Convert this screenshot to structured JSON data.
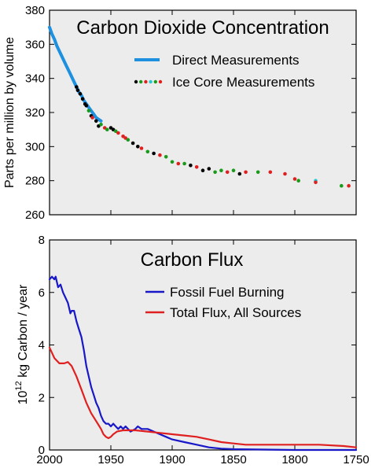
{
  "chart_data": [
    {
      "type": "scatter",
      "title": "Carbon Dioxide Concentration",
      "xlabel": "",
      "ylabel": "Parts per million by volume",
      "xlim": [
        2000,
        1750
      ],
      "ylim": [
        260,
        380
      ],
      "x_reversed": true,
      "xticks": [
        2000,
        1950,
        1900,
        1850,
        1800,
        1750
      ],
      "yticks": [
        260,
        280,
        300,
        320,
        340,
        360,
        380
      ],
      "xticklabels_shown": false,
      "grid": false,
      "legend_position": "top-right",
      "legend_ice_colors": [
        "#000000",
        "#1a9a1a",
        "#e02020",
        "#20c8d0"
      ],
      "series": [
        {
          "name": "Direct Measurements",
          "kind": "line",
          "color": "#1e90e0",
          "points": [
            [
              2000,
              370
            ],
            [
              1998,
              366
            ],
            [
              1996,
              363
            ],
            [
              1994,
              359
            ],
            [
              1992,
              356
            ],
            [
              1990,
              353
            ],
            [
              1988,
              350
            ],
            [
              1986,
              347
            ],
            [
              1984,
              344
            ],
            [
              1982,
              341
            ],
            [
              1980,
              338
            ],
            [
              1978,
              335
            ],
            [
              1976,
              332
            ],
            [
              1974,
              330
            ],
            [
              1972,
              327
            ],
            [
              1970,
              325
            ],
            [
              1968,
              323
            ],
            [
              1966,
              321
            ],
            [
              1964,
              319
            ],
            [
              1962,
              317
            ],
            [
              1960,
              316
            ],
            [
              1958,
              315
            ]
          ]
        },
        {
          "name": "Ice Core Measurements",
          "kind": "scatter",
          "points": [
            {
              "x": 1978,
              "y": 335,
              "c": "#000000"
            },
            {
              "x": 1977,
              "y": 333,
              "c": "#000000"
            },
            {
              "x": 1975,
              "y": 331,
              "c": "#000000"
            },
            {
              "x": 1973,
              "y": 328,
              "c": "#000000"
            },
            {
              "x": 1971,
              "y": 325,
              "c": "#000000"
            },
            {
              "x": 1970,
              "y": 324,
              "c": "#000000"
            },
            {
              "x": 1968,
              "y": 321,
              "c": "#1a9a1a"
            },
            {
              "x": 1966,
              "y": 318,
              "c": "#000000"
            },
            {
              "x": 1965,
              "y": 317,
              "c": "#e02020"
            },
            {
              "x": 1962,
              "y": 315,
              "c": "#000000"
            },
            {
              "x": 1960,
              "y": 312,
              "c": "#000000"
            },
            {
              "x": 1958,
              "y": 313,
              "c": "#1a9a1a"
            },
            {
              "x": 1955,
              "y": 311,
              "c": "#e02020"
            },
            {
              "x": 1953,
              "y": 310,
              "c": "#1a9a1a"
            },
            {
              "x": 1950,
              "y": 311,
              "c": "#000000"
            },
            {
              "x": 1948,
              "y": 310,
              "c": "#000000"
            },
            {
              "x": 1946,
              "y": 309,
              "c": "#1a9a1a"
            },
            {
              "x": 1944,
              "y": 308,
              "c": "#e02020"
            },
            {
              "x": 1940,
              "y": 306,
              "c": "#e02020"
            },
            {
              "x": 1938,
              "y": 305,
              "c": "#e02020"
            },
            {
              "x": 1936,
              "y": 304,
              "c": "#1a9a1a"
            },
            {
              "x": 1932,
              "y": 302,
              "c": "#000000"
            },
            {
              "x": 1928,
              "y": 300,
              "c": "#000000"
            },
            {
              "x": 1925,
              "y": 299,
              "c": "#e02020"
            },
            {
              "x": 1920,
              "y": 297,
              "c": "#1a9a1a"
            },
            {
              "x": 1915,
              "y": 296,
              "c": "#000000"
            },
            {
              "x": 1910,
              "y": 295,
              "c": "#e02020"
            },
            {
              "x": 1905,
              "y": 294,
              "c": "#1a9a1a"
            },
            {
              "x": 1900,
              "y": 291,
              "c": "#1a9a1a"
            },
            {
              "x": 1895,
              "y": 290,
              "c": "#e02020"
            },
            {
              "x": 1890,
              "y": 290,
              "c": "#1a9a1a"
            },
            {
              "x": 1885,
              "y": 289,
              "c": "#000000"
            },
            {
              "x": 1880,
              "y": 288,
              "c": "#e02020"
            },
            {
              "x": 1875,
              "y": 286,
              "c": "#000000"
            },
            {
              "x": 1870,
              "y": 287,
              "c": "#000000"
            },
            {
              "x": 1865,
              "y": 285,
              "c": "#1a9a1a"
            },
            {
              "x": 1860,
              "y": 286,
              "c": "#1a9a1a"
            },
            {
              "x": 1855,
              "y": 285,
              "c": "#e02020"
            },
            {
              "x": 1850,
              "y": 286,
              "c": "#1a9a1a"
            },
            {
              "x": 1845,
              "y": 284,
              "c": "#000000"
            },
            {
              "x": 1840,
              "y": 285,
              "c": "#e02020"
            },
            {
              "x": 1830,
              "y": 285,
              "c": "#1a9a1a"
            },
            {
              "x": 1820,
              "y": 285,
              "c": "#e02020"
            },
            {
              "x": 1808,
              "y": 284,
              "c": "#e02020"
            },
            {
              "x": 1800,
              "y": 281,
              "c": "#e02020"
            },
            {
              "x": 1797,
              "y": 280,
              "c": "#1a9a1a"
            },
            {
              "x": 1783,
              "y": 280,
              "c": "#20c8d0"
            },
            {
              "x": 1783,
              "y": 279,
              "c": "#e02020"
            },
            {
              "x": 1762,
              "y": 277,
              "c": "#1a9a1a"
            },
            {
              "x": 1756,
              "y": 277,
              "c": "#e02020"
            }
          ]
        }
      ]
    },
    {
      "type": "line",
      "title": "Carbon Flux",
      "xlabel": "",
      "ylabel": "10^12 kg Carbon / year",
      "ylabel_base": "10",
      "ylabel_exp": "12",
      "ylabel_rest": " kg Carbon / year",
      "xlim": [
        2000,
        1750
      ],
      "ylim": [
        0,
        8
      ],
      "x_reversed": true,
      "xticks": [
        2000,
        1950,
        1900,
        1850,
        1800,
        1750
      ],
      "yticks": [
        0,
        2,
        4,
        6,
        8
      ],
      "grid": false,
      "legend_position": "top-right",
      "series": [
        {
          "name": "Fossil Fuel Burning",
          "color": "#1818c8",
          "points": [
            [
              2000,
              6.5
            ],
            [
              1998,
              6.6
            ],
            [
              1996,
              6.5
            ],
            [
              1995,
              6.6
            ],
            [
              1993,
              6.2
            ],
            [
              1991,
              6.3
            ],
            [
              1989,
              6.0
            ],
            [
              1987,
              5.8
            ],
            [
              1985,
              5.6
            ],
            [
              1984,
              5.4
            ],
            [
              1983,
              5.2
            ],
            [
              1982,
              5.3
            ],
            [
              1980,
              5.3
            ],
            [
              1978,
              4.9
            ],
            [
              1976,
              4.6
            ],
            [
              1974,
              4.3
            ],
            [
              1972,
              3.8
            ],
            [
              1970,
              3.2
            ],
            [
              1968,
              2.8
            ],
            [
              1966,
              2.4
            ],
            [
              1964,
              2.1
            ],
            [
              1962,
              1.8
            ],
            [
              1960,
              1.6
            ],
            [
              1958,
              1.3
            ],
            [
              1956,
              1.1
            ],
            [
              1954,
              1.0
            ],
            [
              1952,
              1.0
            ],
            [
              1950,
              0.9
            ],
            [
              1948,
              1.0
            ],
            [
              1946,
              0.9
            ],
            [
              1944,
              0.8
            ],
            [
              1942,
              0.9
            ],
            [
              1940,
              0.8
            ],
            [
              1938,
              0.9
            ],
            [
              1936,
              0.8
            ],
            [
              1934,
              0.7
            ],
            [
              1930,
              0.8
            ],
            [
              1928,
              0.9
            ],
            [
              1925,
              0.8
            ],
            [
              1920,
              0.8
            ],
            [
              1915,
              0.7
            ],
            [
              1910,
              0.6
            ],
            [
              1905,
              0.5
            ],
            [
              1900,
              0.4
            ],
            [
              1890,
              0.3
            ],
            [
              1880,
              0.2
            ],
            [
              1870,
              0.1
            ],
            [
              1860,
              0.05
            ],
            [
              1850,
              0.03
            ],
            [
              1800,
              0.0
            ],
            [
              1750,
              0.0
            ]
          ]
        },
        {
          "name": "Total Flux, All Sources",
          "color": "#e02020",
          "points": [
            [
              2000,
              3.9
            ],
            [
              1996,
              3.5
            ],
            [
              1992,
              3.3
            ],
            [
              1988,
              3.3
            ],
            [
              1985,
              3.35
            ],
            [
              1982,
              3.2
            ],
            [
              1978,
              2.8
            ],
            [
              1974,
              2.3
            ],
            [
              1970,
              1.8
            ],
            [
              1966,
              1.4
            ],
            [
              1962,
              1.1
            ],
            [
              1958,
              0.8
            ],
            [
              1956,
              0.6
            ],
            [
              1954,
              0.5
            ],
            [
              1952,
              0.45
            ],
            [
              1950,
              0.5
            ],
            [
              1948,
              0.6
            ],
            [
              1945,
              0.7
            ],
            [
              1940,
              0.75
            ],
            [
              1930,
              0.75
            ],
            [
              1920,
              0.7
            ],
            [
              1910,
              0.65
            ],
            [
              1900,
              0.6
            ],
            [
              1890,
              0.55
            ],
            [
              1880,
              0.5
            ],
            [
              1870,
              0.4
            ],
            [
              1860,
              0.3
            ],
            [
              1850,
              0.25
            ],
            [
              1840,
              0.2
            ],
            [
              1820,
              0.2
            ],
            [
              1800,
              0.2
            ],
            [
              1780,
              0.2
            ],
            [
              1760,
              0.15
            ],
            [
              1750,
              0.1
            ]
          ]
        }
      ]
    }
  ]
}
